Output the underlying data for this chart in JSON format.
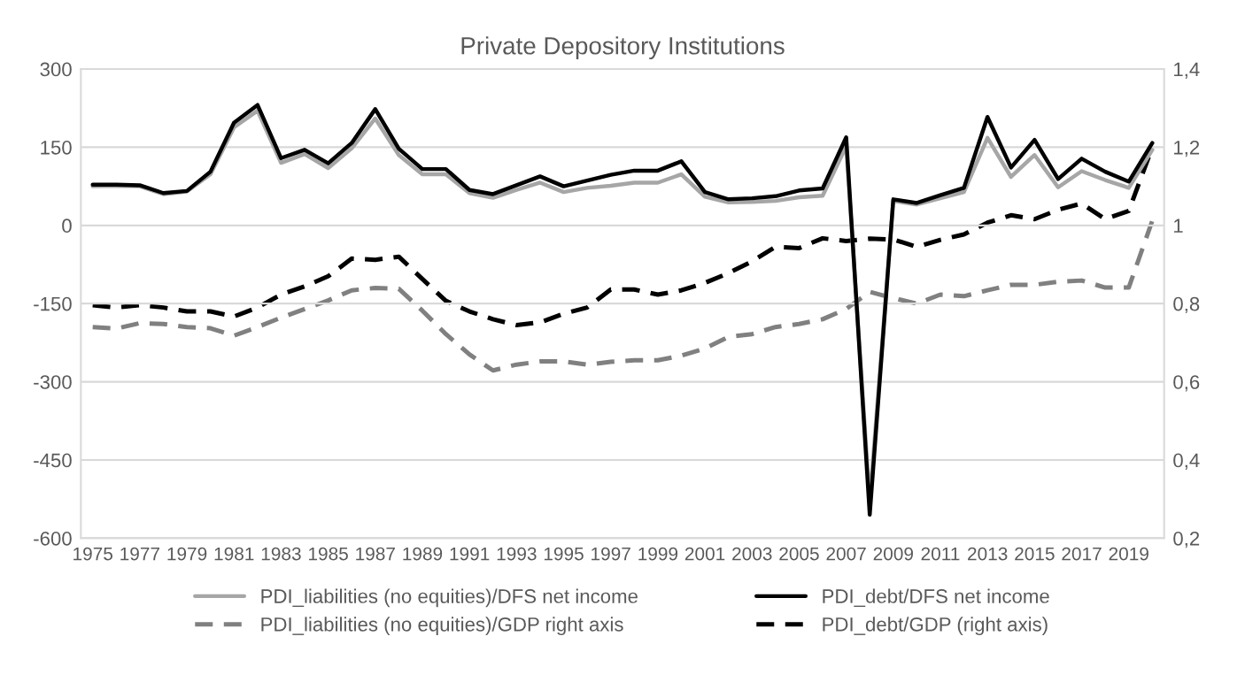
{
  "chart_data": {
    "type": "line",
    "title": "Private Depository Institutions",
    "x": [
      1975,
      1976,
      1977,
      1978,
      1979,
      1980,
      1981,
      1982,
      1983,
      1984,
      1985,
      1986,
      1987,
      1988,
      1989,
      1990,
      1991,
      1992,
      1993,
      1994,
      1995,
      1996,
      1997,
      1998,
      1999,
      2000,
      2001,
      2002,
      2003,
      2004,
      2005,
      2006,
      2007,
      2008,
      2009,
      2010,
      2011,
      2012,
      2013,
      2014,
      2015,
      2016,
      2017,
      2018,
      2019,
      2020
    ],
    "series": [
      {
        "name": "PDI_liabilities (no equities)/DFS net income",
        "color": "#a6a6a6",
        "line_style": "solid",
        "values": [
          75,
          76,
          75,
          60,
          65,
          98,
          188,
          220,
          120,
          137,
          110,
          148,
          205,
          135,
          98,
          98,
          62,
          53,
          68,
          82,
          64,
          72,
          76,
          82,
          82,
          98,
          55,
          44,
          45,
          47,
          54,
          57,
          152,
          -530,
          47,
          40,
          52,
          64,
          168,
          93,
          135,
          73,
          104,
          87,
          72,
          145
        ]
      },
      {
        "name": "PDI_debt/DFS net income",
        "color": "#000000",
        "line_style": "solid",
        "values": [
          78,
          78,
          77,
          62,
          66,
          103,
          197,
          231,
          129,
          145,
          119,
          158,
          223,
          147,
          108,
          108,
          68,
          60,
          77,
          94,
          75,
          86,
          97,
          105,
          105,
          123,
          64,
          50,
          52,
          56,
          67,
          71,
          169,
          -555,
          50,
          43,
          58,
          72,
          208,
          111,
          164,
          89,
          128,
          103,
          84,
          158
        ]
      },
      {
        "name": "PDI_liabilities (no equities)/GDP right axis",
        "color": "#808080",
        "line_style": "dashed",
        "axis": "y2",
        "values": [
          0.74,
          0.736,
          0.75,
          0.748,
          0.74,
          0.737,
          0.718,
          0.74,
          0.764,
          0.786,
          0.808,
          0.834,
          0.84,
          0.838,
          0.782,
          0.722,
          0.67,
          0.629,
          0.644,
          0.652,
          0.652,
          0.644,
          0.651,
          0.655,
          0.655,
          0.667,
          0.685,
          0.715,
          0.722,
          0.74,
          0.748,
          0.76,
          0.786,
          0.83,
          0.814,
          0.8,
          0.823,
          0.819,
          0.834,
          0.848,
          0.848,
          0.856,
          0.859,
          0.841,
          0.841,
          1.012
        ]
      },
      {
        "name": "PDI_debt/GDP (right axis)",
        "color": "#000000",
        "line_style": "dashed",
        "axis": "y2",
        "values": [
          0.796,
          0.79,
          0.796,
          0.79,
          0.78,
          0.78,
          0.767,
          0.79,
          0.823,
          0.844,
          0.87,
          0.915,
          0.912,
          0.92,
          0.863,
          0.807,
          0.78,
          0.76,
          0.745,
          0.752,
          0.774,
          0.79,
          0.836,
          0.836,
          0.823,
          0.834,
          0.853,
          0.878,
          0.908,
          0.945,
          0.942,
          0.967,
          0.96,
          0.966,
          0.964,
          0.945,
          0.963,
          0.977,
          1.007,
          1.026,
          1.016,
          1.04,
          1.056,
          1.016,
          1.037,
          1.2
        ]
      }
    ],
    "xlim": [
      1974.5,
      2020.5
    ],
    "xticks": [
      1975,
      1977,
      1979,
      1981,
      1983,
      1985,
      1987,
      1989,
      1991,
      1993,
      1995,
      1997,
      1999,
      2001,
      2003,
      2005,
      2007,
      2009,
      2011,
      2013,
      2015,
      2017,
      2019
    ],
    "ylim": [
      -600,
      300
    ],
    "yticks": [
      -600,
      -450,
      -300,
      -150,
      0,
      150,
      300
    ],
    "y2lim": [
      0.2,
      1.4
    ],
    "y2ticks": [
      {
        "value": 0.2,
        "label": "0,2"
      },
      {
        "value": 0.4,
        "label": "0,4"
      },
      {
        "value": 0.6,
        "label": "0,6"
      },
      {
        "value": 0.8,
        "label": "0,8"
      },
      1,
      {
        "value": 1.2,
        "label": "1,2"
      },
      {
        "value": 1.4,
        "label": "1,4"
      }
    ],
    "grid": "y",
    "legend": "bottom",
    "marker": "none"
  }
}
